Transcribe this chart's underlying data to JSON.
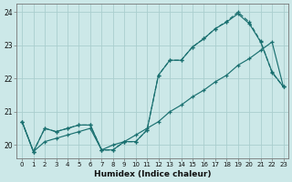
{
  "xlabel": "Humidex (Indice chaleur)",
  "bg_color": "#cce8e8",
  "grid_color": "#aacece",
  "line_color": "#1a7070",
  "xlim_min": -0.5,
  "xlim_max": 23.4,
  "ylim_min": 19.6,
  "ylim_max": 24.25,
  "xticks": [
    0,
    1,
    2,
    3,
    4,
    5,
    6,
    7,
    8,
    9,
    10,
    11,
    12,
    13,
    14,
    15,
    16,
    17,
    18,
    19,
    20,
    21,
    22,
    23
  ],
  "yticks": [
    20,
    21,
    22,
    23,
    24
  ],
  "curve1_x": [
    0,
    1,
    2,
    3,
    4,
    5,
    6,
    7,
    8,
    9,
    10,
    11,
    12,
    13,
    14,
    15,
    16,
    17,
    18,
    19,
    20,
    21,
    22,
    23
  ],
  "curve1_y": [
    20.7,
    19.8,
    20.5,
    20.4,
    20.5,
    20.6,
    20.6,
    19.85,
    19.85,
    20.1,
    20.1,
    20.45,
    22.1,
    22.55,
    22.55,
    22.95,
    23.2,
    23.5,
    23.7,
    23.95,
    23.65,
    23.1,
    22.2,
    21.75
  ],
  "curve2_x": [
    0,
    1,
    2,
    3,
    4,
    5,
    6,
    7,
    8,
    9,
    10,
    11,
    12,
    13,
    14,
    15,
    16,
    17,
    18,
    19,
    20,
    21,
    22,
    23
  ],
  "curve2_y": [
    20.7,
    19.8,
    20.5,
    20.4,
    20.5,
    20.6,
    20.6,
    19.85,
    19.85,
    20.1,
    20.1,
    20.45,
    22.1,
    22.55,
    22.55,
    22.95,
    23.2,
    23.5,
    23.72,
    24.0,
    23.7,
    23.12,
    22.18,
    21.75
  ],
  "curve3_x": [
    0,
    1,
    2,
    3,
    4,
    5,
    6,
    7,
    8,
    9,
    10,
    11,
    12,
    13,
    14,
    15,
    16,
    17,
    18,
    19,
    20,
    21,
    22,
    23
  ],
  "curve3_y": [
    20.7,
    19.8,
    20.1,
    20.2,
    20.3,
    20.4,
    20.5,
    19.85,
    20.0,
    20.1,
    20.3,
    20.5,
    20.7,
    21.0,
    21.2,
    21.45,
    21.65,
    21.9,
    22.1,
    22.4,
    22.6,
    22.85,
    23.1,
    21.75
  ]
}
